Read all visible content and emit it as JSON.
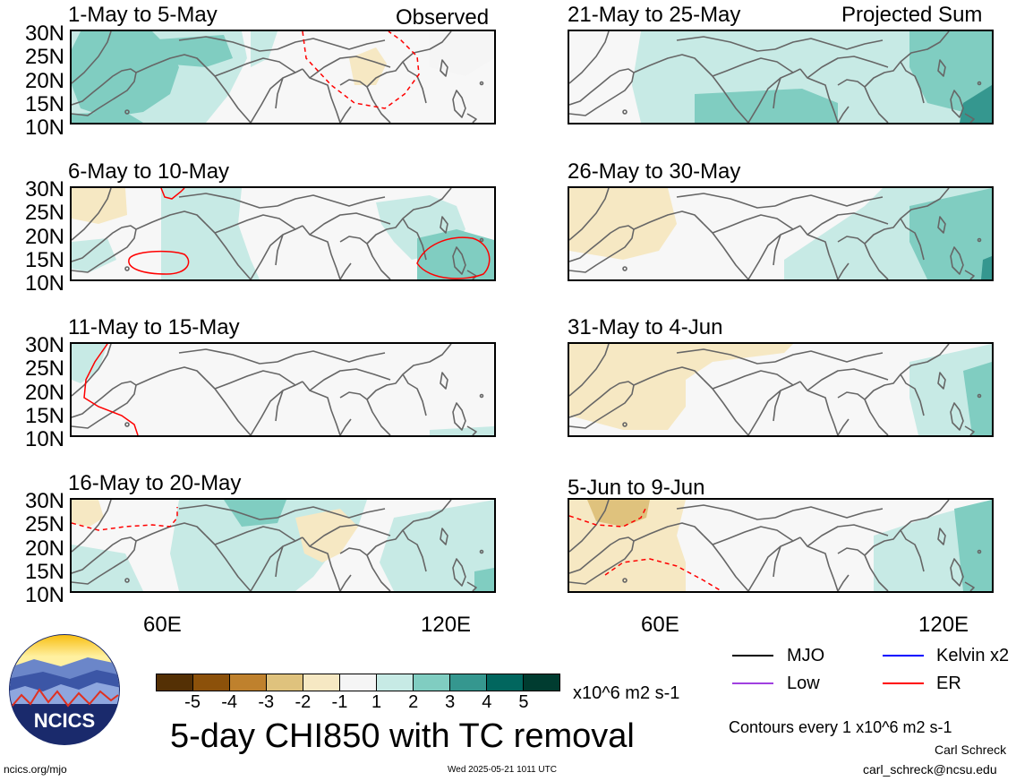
{
  "left_tag": "Observed",
  "right_tag": "Projected Sum",
  "panels_left": [
    {
      "title": "1-May to 5-May"
    },
    {
      "title": "6-May to 10-May"
    },
    {
      "title": "11-May to 15-May"
    },
    {
      "title": "16-May to 20-May"
    }
  ],
  "panels_right": [
    {
      "title": "21-May to 25-May"
    },
    {
      "title": "26-May to 30-May"
    },
    {
      "title": "31-May to 4-Jun"
    },
    {
      "title": "5-Jun to 9-Jun"
    }
  ],
  "lat_labels": [
    "30N",
    "25N",
    "20N",
    "15N",
    "10N"
  ],
  "lon_labels": [
    "60E",
    "120E"
  ],
  "colorbar": {
    "colors": [
      "#543005",
      "#8c510a",
      "#bf812d",
      "#dfc27d",
      "#f6e8c3",
      "#f5f5f5",
      "#c7eae5",
      "#80cdc1",
      "#35978f",
      "#01665e",
      "#003c30"
    ],
    "labels": [
      "-5",
      "-4",
      "-3",
      "-2",
      "-1",
      "1",
      "2",
      "3",
      "4",
      "5"
    ],
    "units": "x10^6 m2 s-1"
  },
  "legend": {
    "items": [
      {
        "label": "MJO",
        "color": "#000000"
      },
      {
        "label": "Kelvin x2",
        "color": "#0000ff"
      },
      {
        "label": "Low",
        "color": "#a040e0"
      },
      {
        "label": "ER",
        "color": "#ff0000"
      }
    ],
    "contours": "Contours every 1 x10^6 m2 s-1"
  },
  "logo_text": "NCICS",
  "main_title": "5-day CHI850 with TC removal",
  "author": "Carl Schreck",
  "email": "carl_schreck@ncsu.edu",
  "site": "ncics.org/mjo",
  "timestamp": "Wed 2025-05-21 1011 UTC"
}
